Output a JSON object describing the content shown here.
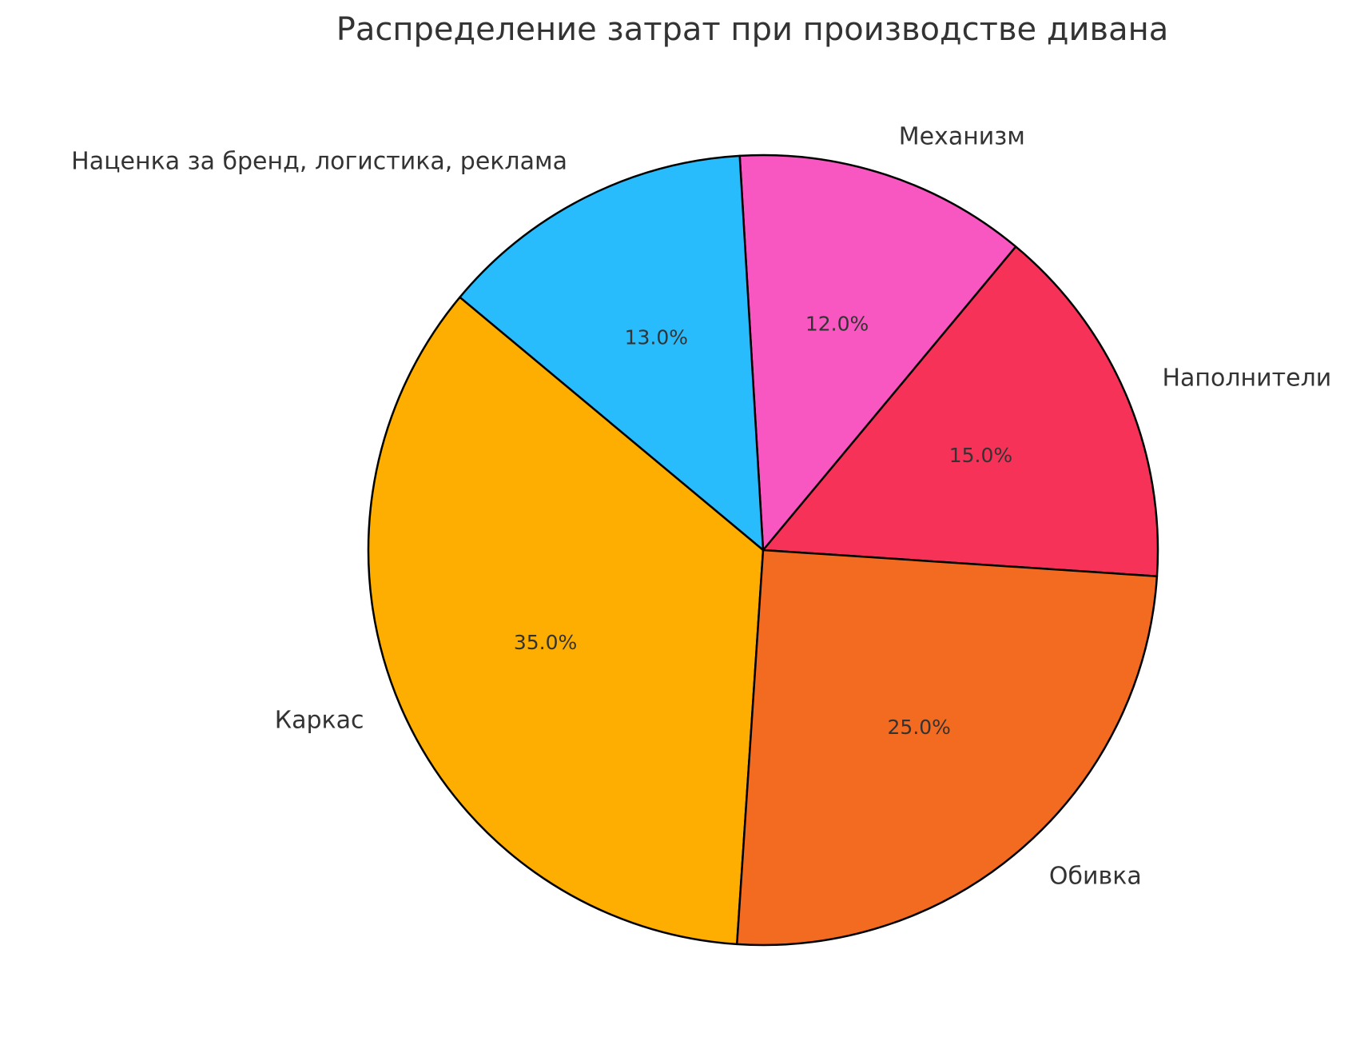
{
  "chart_data": {
    "type": "pie",
    "title": "Распределение затрат при производстве дивана",
    "slices": [
      {
        "label": "Наполнители",
        "value": 15.0,
        "pct_label": "15.0%",
        "color": "#F73258"
      },
      {
        "label": "Механизм",
        "value": 12.0,
        "pct_label": "12.0%",
        "color": "#F857C1"
      },
      {
        "label": "Наценка за бренд, логистика, реклама",
        "value": 13.0,
        "pct_label": "13.0%",
        "color": "#29BCFC"
      },
      {
        "label": "Каркас",
        "value": 35.0,
        "pct_label": "35.0%",
        "color": "#FEAE00"
      },
      {
        "label": "Обивка",
        "value": 25.0,
        "pct_label": "25.0%",
        "color": "#F36A21"
      }
    ],
    "start_angle_deg": -3.8,
    "counterclock": true,
    "edge_color": "#000000"
  }
}
